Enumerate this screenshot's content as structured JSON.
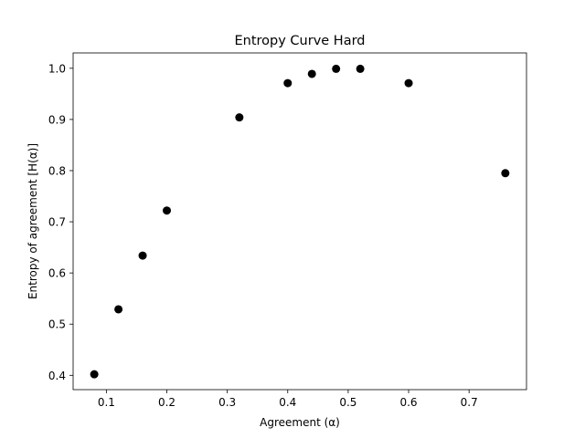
{
  "chart_data": {
    "type": "scatter",
    "title": "Entropy Curve Hard",
    "xlabel": "Agreement (α)",
    "ylabel": "Entropy of agreement [H(α)]",
    "xlim": [
      0.045,
      0.795
    ],
    "ylim": [
      0.372,
      1.03
    ],
    "x_ticks": [
      0.1,
      0.2,
      0.3,
      0.4,
      0.5,
      0.6,
      0.7
    ],
    "x_tick_labels": [
      "0.1",
      "0.2",
      "0.3",
      "0.4",
      "0.5",
      "0.6",
      "0.7"
    ],
    "y_ticks": [
      0.4,
      0.5,
      0.6,
      0.7,
      0.8,
      0.9,
      1.0
    ],
    "y_tick_labels": [
      "0.4",
      "0.5",
      "0.6",
      "0.7",
      "0.8",
      "0.9",
      "1.0"
    ],
    "grid": false,
    "marker_color": "#000000",
    "points": [
      {
        "x": 0.08,
        "y": 0.402
      },
      {
        "x": 0.12,
        "y": 0.529
      },
      {
        "x": 0.16,
        "y": 0.634
      },
      {
        "x": 0.2,
        "y": 0.722
      },
      {
        "x": 0.32,
        "y": 0.904
      },
      {
        "x": 0.4,
        "y": 0.971
      },
      {
        "x": 0.44,
        "y": 0.989
      },
      {
        "x": 0.48,
        "y": 0.999
      },
      {
        "x": 0.52,
        "y": 0.999
      },
      {
        "x": 0.6,
        "y": 0.971
      },
      {
        "x": 0.76,
        "y": 0.795
      }
    ]
  }
}
